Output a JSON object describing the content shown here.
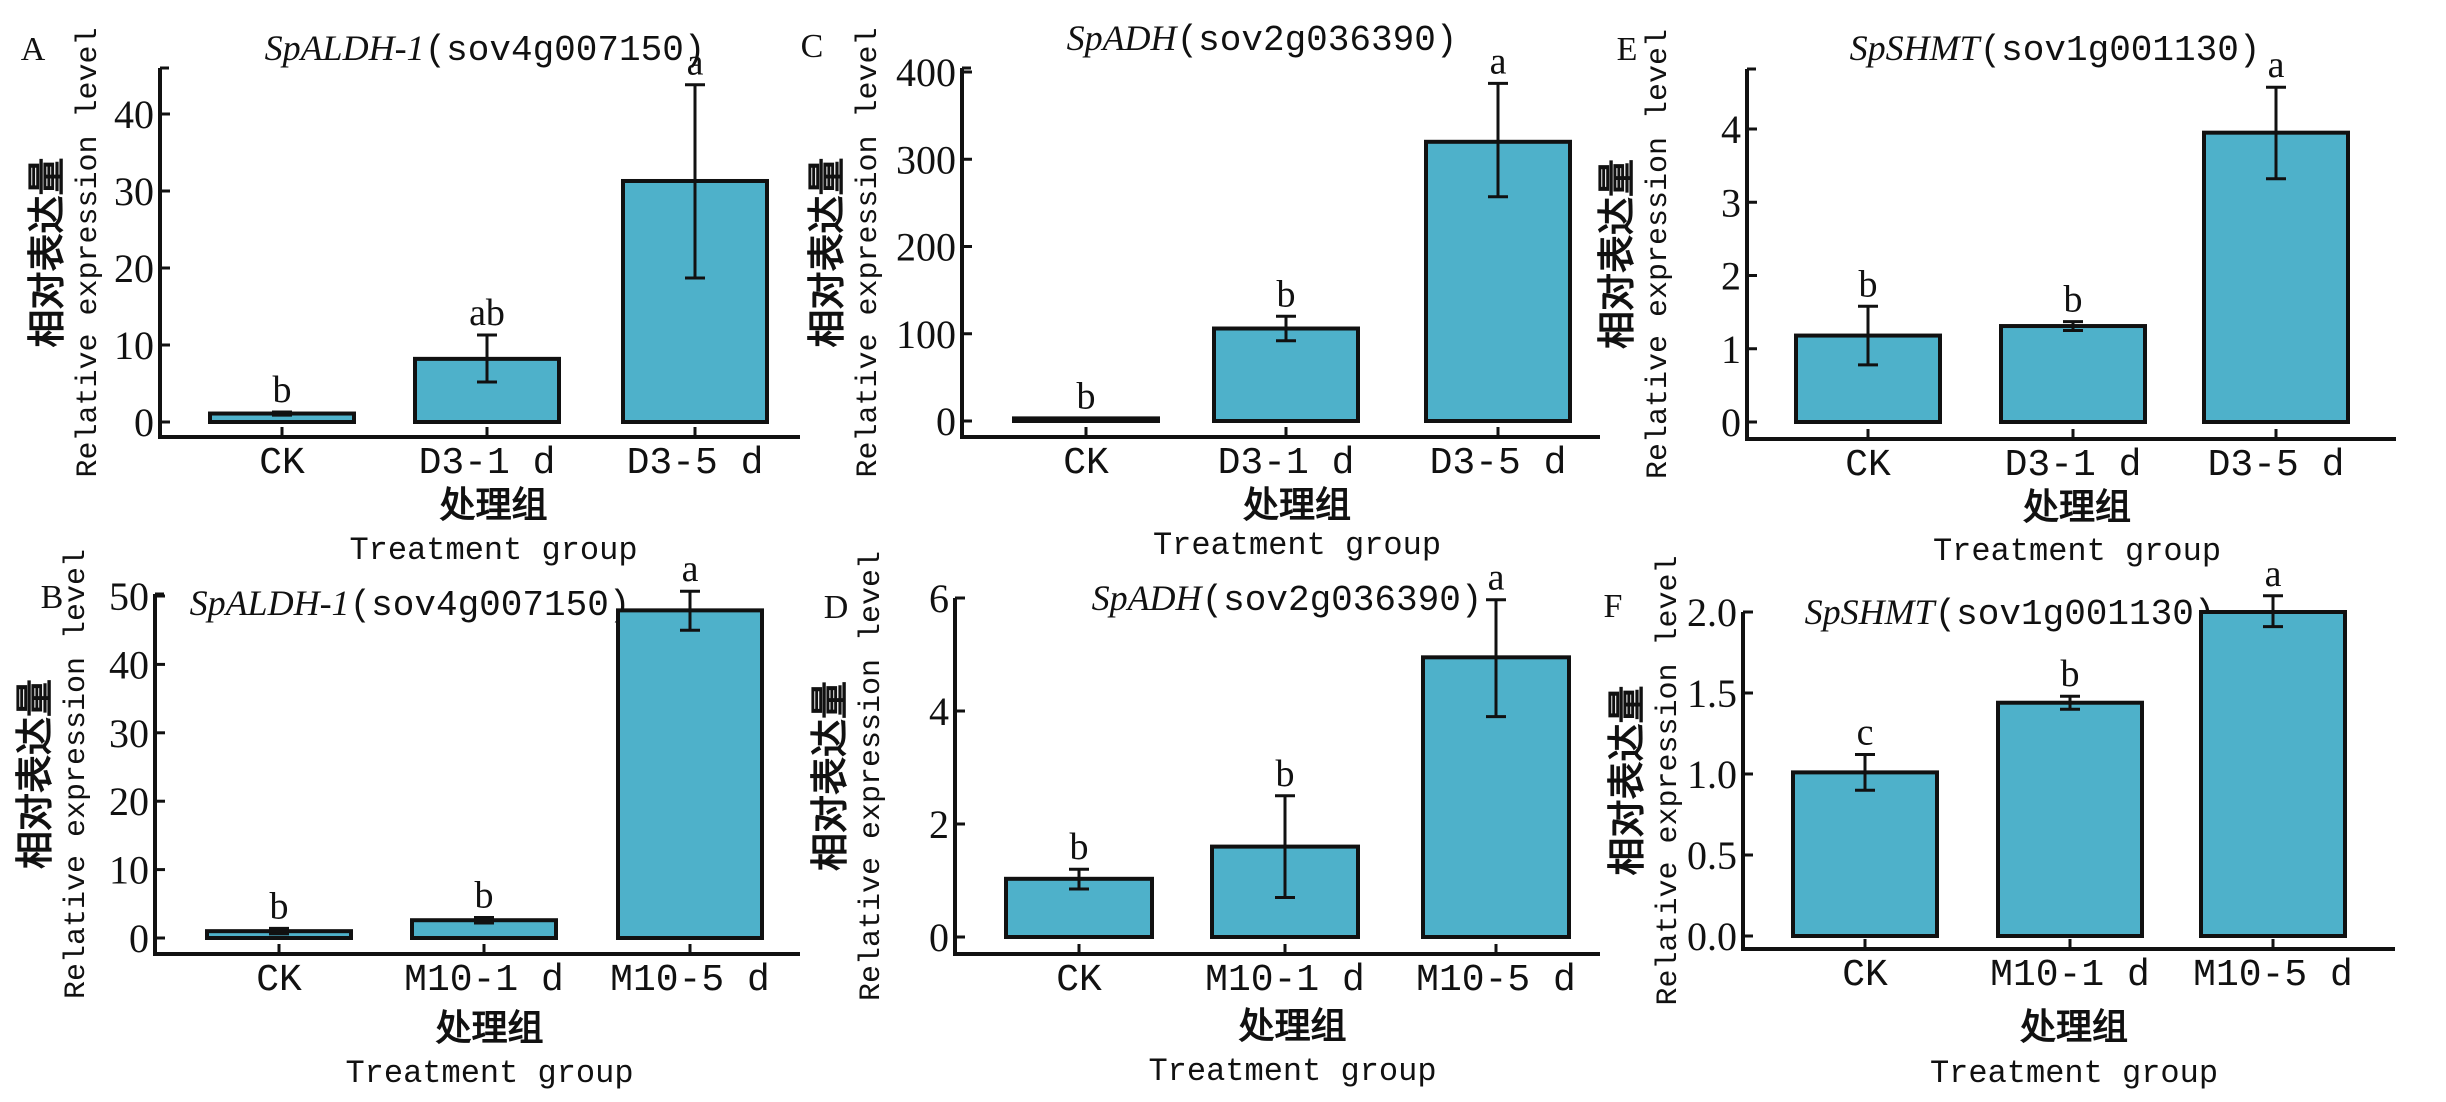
{
  "figure": {
    "bar_color": "#4eb1ca",
    "edge_color": "#111111",
    "ylabel_cn": "相对表达量",
    "ylabel_en": "Relative expression level",
    "xlabel_cn": "处理组",
    "xlabel_en": "Treatment group"
  },
  "chart_data": [
    {
      "panel": "A",
      "type": "bar",
      "title_gene": "SpALDH-1",
      "title_id": "(sov4g007150)",
      "xlabel": "处理组 Treatment group",
      "ylabel": "相对表达量 Relative expression level",
      "categories": [
        "CK",
        "D3-1 d",
        "D3-5 d"
      ],
      "values": [
        1.1,
        8.2,
        31.3
      ],
      "error_low": [
        0.9,
        5.2,
        18.7
      ],
      "error_high": [
        1.3,
        11.3,
        43.8
      ],
      "significance": [
        "b",
        "ab",
        "a"
      ],
      "yticks": [
        0,
        10,
        20,
        30,
        40
      ],
      "ytick_labels": [
        "0",
        "10",
        "20",
        "30",
        "40"
      ],
      "ylim": [
        -1.5,
        46
      ]
    },
    {
      "panel": "C",
      "type": "bar",
      "title_gene": "SpADH",
      "title_id": "(sov2g036390)",
      "xlabel": "处理组 Treatment group",
      "ylabel": "相对表达量 Relative expression level",
      "categories": [
        "CK",
        "D3-1 d",
        "D3-5 d"
      ],
      "values": [
        3,
        106,
        320
      ],
      "error_low": [
        3,
        92,
        257
      ],
      "error_high": [
        3,
        120,
        387
      ],
      "significance": [
        "b",
        "b",
        "a"
      ],
      "yticks": [
        0,
        100,
        200,
        300,
        400
      ],
      "ytick_labels": [
        "0",
        "100",
        "200",
        "300",
        "400"
      ],
      "ylim": [
        -17,
        405
      ]
    },
    {
      "panel": "E",
      "type": "bar",
      "title_gene": "SpSHMT",
      "title_id": "(sov1g001130)",
      "xlabel": "处理组 Treatment group",
      "ylabel": "相对表达量 Relative expression level",
      "categories": [
        "CK",
        "D3-1 d",
        "D3-5 d"
      ],
      "values": [
        1.18,
        1.31,
        3.95
      ],
      "error_low": [
        0.78,
        1.25,
        3.32
      ],
      "error_high": [
        1.58,
        1.37,
        4.57
      ],
      "significance": [
        "b",
        "b",
        "a"
      ],
      "yticks": [
        0,
        1,
        2,
        3,
        4
      ],
      "ytick_labels": [
        "0",
        "1",
        "2",
        "3",
        "4"
      ],
      "ylim": [
        -0.23,
        4.8
      ]
    },
    {
      "panel": "B",
      "type": "bar",
      "title_gene": "SpALDH-1",
      "title_id": "(sov4g007150)",
      "xlabel": "处理组 Treatment group",
      "ylabel": "相对表达量 Relative expression level",
      "categories": [
        "CK",
        "M10-1 d",
        "M10-5 d"
      ],
      "values": [
        1.0,
        2.6,
        47.9
      ],
      "error_low": [
        0.6,
        2.2,
        45.0
      ],
      "error_high": [
        1.4,
        3.0,
        50.7
      ],
      "significance": [
        "b",
        "b",
        "a"
      ],
      "yticks": [
        0,
        10,
        20,
        30,
        40,
        50
      ],
      "ytick_labels": [
        "0",
        "10",
        "20",
        "30",
        "40",
        "50"
      ],
      "ylim": [
        -2.3,
        50.5
      ]
    },
    {
      "panel": "D",
      "type": "bar",
      "title_gene": "SpADH",
      "title_id": "(sov2g036390)",
      "xlabel": "处理组 Treatment group",
      "ylabel": "相对表达量 Relative expression level",
      "categories": [
        "CK",
        "M10-1 d",
        "M10-5 d"
      ],
      "values": [
        1.03,
        1.6,
        4.95
      ],
      "error_low": [
        0.85,
        0.7,
        3.9
      ],
      "error_high": [
        1.2,
        2.5,
        5.97
      ],
      "significance": [
        "b",
        "b",
        "a"
      ],
      "yticks": [
        0,
        2,
        4,
        6
      ],
      "ytick_labels": [
        "0",
        "2",
        "4",
        "6"
      ],
      "ylim": [
        -0.3,
        6.05
      ]
    },
    {
      "panel": "F",
      "type": "bar",
      "title_gene": "SpSHMT",
      "title_id": "(sov1g001130)",
      "xlabel": "处理组 Treatment group",
      "ylabel": "相对表达量 Relative expression level",
      "categories": [
        "CK",
        "M10-1 d",
        "M10-5 d"
      ],
      "values": [
        1.01,
        1.44,
        2.0
      ],
      "error_low": [
        0.9,
        1.4,
        1.91
      ],
      "error_high": [
        1.12,
        1.48,
        2.1
      ],
      "significance": [
        "c",
        "b",
        "a"
      ],
      "yticks": [
        0.0,
        0.5,
        1.0,
        1.5,
        2.0
      ],
      "ytick_labels": [
        "0.0",
        "0.5",
        "1.0",
        "1.5",
        "2.0"
      ],
      "ylim": [
        -0.08,
        2.02
      ]
    }
  ]
}
